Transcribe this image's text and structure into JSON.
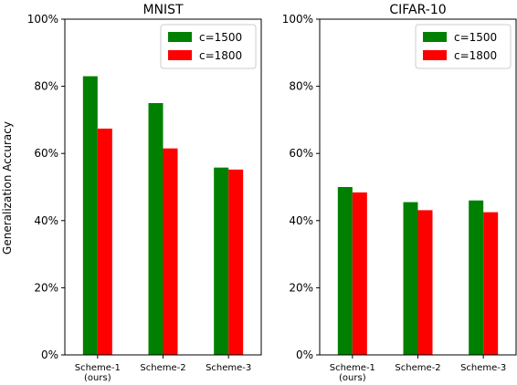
{
  "figure": {
    "ylabel": "Generalization Accuracy"
  },
  "chart_data": [
    {
      "type": "bar",
      "title": "MNIST",
      "categories": [
        "Scheme-1\n(ours)",
        "Scheme-2",
        "Scheme-3"
      ],
      "series": [
        {
          "name": "c=1500",
          "color": "#008000",
          "values": [
            83,
            75,
            55.8
          ]
        },
        {
          "name": "c=1800",
          "color": "#ff0000",
          "values": [
            67.4,
            61.5,
            55.2
          ]
        }
      ],
      "xlabel": "",
      "ylabel": "Generalization Accuracy",
      "ylim": [
        0,
        100
      ],
      "yticks": [
        0,
        20,
        40,
        60,
        80,
        100
      ],
      "ytick_labels": [
        "0%",
        "20%",
        "40%",
        "60%",
        "80%",
        "100%"
      ],
      "grid": false,
      "legend": "top-right"
    },
    {
      "type": "bar",
      "title": "CIFAR-10",
      "categories": [
        "Scheme-1\n(ours)",
        "Scheme-2",
        "Scheme-3"
      ],
      "series": [
        {
          "name": "c=1500",
          "color": "#008000",
          "values": [
            50,
            45.5,
            46
          ]
        },
        {
          "name": "c=1800",
          "color": "#ff0000",
          "values": [
            48.4,
            43.1,
            42.5
          ]
        }
      ],
      "xlabel": "",
      "ylabel": "",
      "ylim": [
        0,
        100
      ],
      "yticks": [
        0,
        20,
        40,
        60,
        80,
        100
      ],
      "ytick_labels": [
        "0%",
        "20%",
        "40%",
        "60%",
        "80%",
        "100%"
      ],
      "grid": false,
      "legend": "top-right"
    }
  ]
}
